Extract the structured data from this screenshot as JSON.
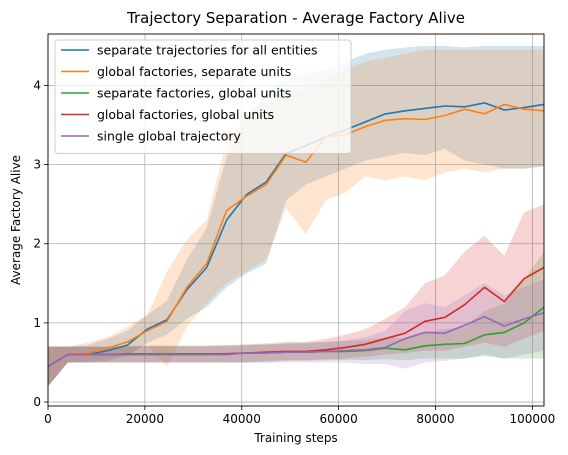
{
  "chart_data": {
    "type": "line",
    "title": "Trajectory Separation - Average Factory Alive",
    "xlabel": "Training steps",
    "ylabel": "Average Factory Alive",
    "xlim": [
      0,
      102400
    ],
    "ylim": [
      -0.05,
      4.65
    ],
    "xticks": [
      0,
      20000,
      40000,
      60000,
      80000,
      100000
    ],
    "xtick_labels": [
      "0",
      "20000",
      "40000",
      "60000",
      "80000",
      "100000"
    ],
    "yticks": [
      0,
      1,
      2,
      3,
      4
    ],
    "ytick_labels": [
      "0",
      "1",
      "2",
      "3",
      "4"
    ],
    "grid": true,
    "legend_position": "top-left",
    "x": [
      0,
      4096,
      8192,
      12288,
      16384,
      20480,
      24576,
      28672,
      32768,
      36864,
      40960,
      45056,
      49152,
      53248,
      57344,
      61440,
      65536,
      69632,
      73728,
      77824,
      81920,
      86016,
      90112,
      94208,
      98304,
      102400
    ],
    "series": [
      {
        "name": "separate trajectories for all entities",
        "color": "#1f77b4",
        "values": [
          0.45,
          0.6,
          0.6,
          0.65,
          0.72,
          0.92,
          1.04,
          1.42,
          1.7,
          2.3,
          2.62,
          2.78,
          3.14,
          3.24,
          3.35,
          3.44,
          3.54,
          3.64,
          3.68,
          3.71,
          3.74,
          3.73,
          3.78,
          3.69,
          3.72,
          3.76
        ],
        "lower": [
          0.2,
          0.5,
          0.5,
          0.52,
          0.58,
          0.75,
          0.85,
          1.05,
          1.2,
          1.45,
          1.62,
          1.75,
          2.55,
          2.75,
          2.85,
          2.95,
          3.05,
          3.1,
          3.15,
          3.12,
          3.2,
          3.05,
          3.0,
          2.95,
          2.95,
          2.98
        ],
        "upper": [
          0.7,
          0.7,
          0.72,
          0.8,
          0.9,
          1.1,
          1.28,
          1.8,
          2.2,
          3.1,
          3.6,
          3.9,
          4.1,
          4.15,
          4.2,
          4.3,
          4.4,
          4.45,
          4.48,
          4.5,
          4.5,
          4.48,
          4.5,
          4.5,
          4.5,
          4.5
        ]
      },
      {
        "name": "global factories, separate units",
        "color": "#ff7f0e",
        "values": [
          0.45,
          0.6,
          0.62,
          0.68,
          0.76,
          0.9,
          1.02,
          1.45,
          1.75,
          2.42,
          2.6,
          2.75,
          3.12,
          3.03,
          3.35,
          3.38,
          3.48,
          3.56,
          3.58,
          3.57,
          3.62,
          3.7,
          3.64,
          3.76,
          3.7,
          3.68
        ],
        "lower": [
          0.2,
          0.5,
          0.52,
          0.55,
          0.6,
          0.72,
          0.45,
          0.95,
          1.25,
          1.5,
          1.65,
          1.8,
          2.45,
          2.12,
          2.55,
          2.65,
          2.85,
          2.8,
          2.85,
          2.8,
          2.9,
          2.95,
          2.9,
          2.95,
          2.95,
          2.98
        ],
        "upper": [
          0.7,
          0.7,
          0.75,
          0.82,
          0.95,
          1.1,
          1.65,
          2.05,
          2.3,
          3.3,
          3.65,
          3.8,
          3.9,
          3.95,
          4.1,
          4.2,
          4.3,
          4.35,
          4.4,
          4.45,
          4.45,
          4.45,
          4.45,
          4.45,
          4.45,
          4.45
        ]
      },
      {
        "name": "separate factories, global units",
        "color": "#2ca02c",
        "values": [
          0.45,
          0.6,
          0.6,
          0.6,
          0.61,
          0.61,
          0.61,
          0.61,
          0.61,
          0.61,
          0.62,
          0.62,
          0.63,
          0.63,
          0.64,
          0.64,
          0.65,
          0.68,
          0.66,
          0.71,
          0.73,
          0.74,
          0.85,
          0.88,
          1.0,
          1.2
        ],
        "lower": [
          0.2,
          0.5,
          0.5,
          0.5,
          0.5,
          0.5,
          0.5,
          0.5,
          0.5,
          0.5,
          0.5,
          0.5,
          0.52,
          0.52,
          0.53,
          0.53,
          0.53,
          0.54,
          0.53,
          0.55,
          0.55,
          0.55,
          0.58,
          0.55,
          0.55,
          0.55
        ],
        "upper": [
          0.7,
          0.7,
          0.7,
          0.7,
          0.71,
          0.71,
          0.71,
          0.71,
          0.71,
          0.72,
          0.72,
          0.73,
          0.74,
          0.75,
          0.76,
          0.77,
          0.78,
          0.82,
          0.8,
          0.88,
          0.92,
          0.95,
          1.15,
          1.25,
          1.55,
          1.9
        ]
      },
      {
        "name": "global factories, global units",
        "color": "#d62728",
        "values": [
          0.45,
          0.6,
          0.6,
          0.6,
          0.6,
          0.6,
          0.6,
          0.6,
          0.6,
          0.61,
          0.62,
          0.63,
          0.64,
          0.64,
          0.66,
          0.69,
          0.73,
          0.8,
          0.87,
          1.02,
          1.07,
          1.23,
          1.45,
          1.27,
          1.56,
          1.7
        ],
        "lower": [
          0.2,
          0.5,
          0.5,
          0.5,
          0.5,
          0.5,
          0.5,
          0.5,
          0.5,
          0.5,
          0.5,
          0.52,
          0.53,
          0.53,
          0.54,
          0.55,
          0.57,
          0.6,
          0.62,
          0.65,
          0.65,
          0.7,
          0.75,
          0.7,
          0.8,
          0.9
        ],
        "upper": [
          0.7,
          0.7,
          0.7,
          0.7,
          0.7,
          0.71,
          0.71,
          0.71,
          0.71,
          0.72,
          0.73,
          0.74,
          0.76,
          0.76,
          0.8,
          0.85,
          0.92,
          1.05,
          1.2,
          1.5,
          1.6,
          1.9,
          2.1,
          1.85,
          2.4,
          2.5
        ]
      },
      {
        "name": "single global trajectory",
        "color": "#9467bd",
        "values": [
          0.45,
          0.6,
          0.6,
          0.6,
          0.6,
          0.6,
          0.6,
          0.6,
          0.6,
          0.6,
          0.62,
          0.62,
          0.63,
          0.63,
          0.64,
          0.65,
          0.66,
          0.69,
          0.8,
          0.88,
          0.87,
          0.97,
          1.08,
          0.96,
          1.05,
          1.13
        ],
        "lower": [
          0.2,
          0.5,
          0.5,
          0.5,
          0.5,
          0.5,
          0.5,
          0.5,
          0.5,
          0.5,
          0.5,
          0.5,
          0.5,
          0.5,
          0.5,
          0.5,
          0.48,
          0.48,
          0.42,
          0.5,
          0.52,
          0.55,
          0.6,
          0.55,
          0.6,
          0.65
        ],
        "upper": [
          0.7,
          0.7,
          0.7,
          0.7,
          0.7,
          0.7,
          0.7,
          0.7,
          0.7,
          0.7,
          0.72,
          0.72,
          0.74,
          0.74,
          0.76,
          0.78,
          0.82,
          0.9,
          1.15,
          1.25,
          1.2,
          1.35,
          1.5,
          1.35,
          1.45,
          1.55
        ]
      }
    ]
  }
}
